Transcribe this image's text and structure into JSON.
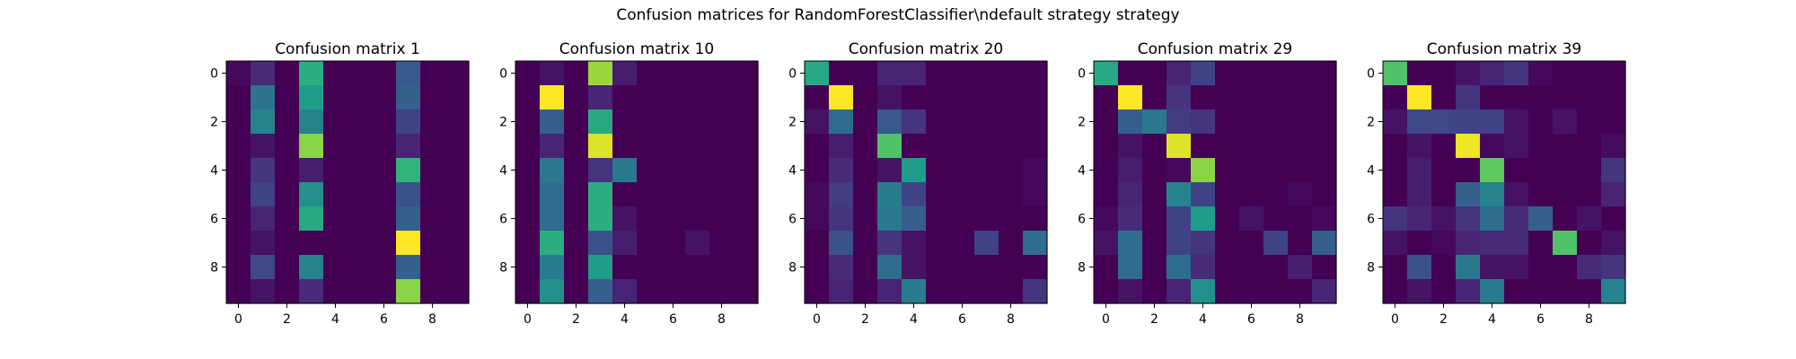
{
  "figure": {
    "suptitle": "Confusion matrices for RandomForestClassifier\\ndefault strategy strategy"
  },
  "colormap": {
    "name": "viridis",
    "stops": [
      "#440154",
      "#482878",
      "#3e4989",
      "#31688e",
      "#26828e",
      "#1f9e89",
      "#35b779",
      "#6ece58",
      "#b5de2b",
      "#fde725"
    ]
  },
  "chart_data": [
    {
      "type": "heatmap",
      "title": "Confusion matrix 1",
      "xticks": [
        "0",
        "2",
        "4",
        "6",
        "8"
      ],
      "yticks": [
        "0",
        "2",
        "4",
        "6",
        "8"
      ],
      "vmin": 0,
      "vmax": 1,
      "values": [
        [
          0.02,
          0.12,
          0.0,
          0.62,
          0.0,
          0.0,
          0.0,
          0.28,
          0.0,
          0.0
        ],
        [
          0.0,
          0.38,
          0.0,
          0.55,
          0.0,
          0.0,
          0.0,
          0.3,
          0.0,
          0.0
        ],
        [
          0.0,
          0.45,
          0.0,
          0.45,
          0.0,
          0.0,
          0.0,
          0.2,
          0.0,
          0.0
        ],
        [
          0.0,
          0.05,
          0.0,
          0.82,
          0.0,
          0.0,
          0.0,
          0.1,
          0.0,
          0.0
        ],
        [
          0.0,
          0.15,
          0.0,
          0.08,
          0.0,
          0.0,
          0.0,
          0.65,
          0.0,
          0.0
        ],
        [
          0.0,
          0.2,
          0.0,
          0.5,
          0.0,
          0.0,
          0.0,
          0.25,
          0.0,
          0.0
        ],
        [
          0.0,
          0.1,
          0.0,
          0.6,
          0.0,
          0.0,
          0.0,
          0.3,
          0.0,
          0.0
        ],
        [
          0.0,
          0.05,
          0.0,
          0.0,
          0.0,
          0.0,
          0.0,
          1.0,
          0.0,
          0.0
        ],
        [
          0.0,
          0.22,
          0.0,
          0.45,
          0.0,
          0.0,
          0.0,
          0.3,
          0.0,
          0.0
        ],
        [
          0.0,
          0.05,
          0.0,
          0.12,
          0.0,
          0.0,
          0.0,
          0.82,
          0.0,
          0.0
        ]
      ]
    },
    {
      "type": "heatmap",
      "title": "Confusion matrix 10",
      "xticks": [
        "0",
        "2",
        "4",
        "6",
        "8"
      ],
      "yticks": [
        "0",
        "2",
        "4",
        "6",
        "8"
      ],
      "vmin": 0,
      "vmax": 1,
      "values": [
        [
          0.0,
          0.05,
          0.0,
          0.85,
          0.08,
          0.0,
          0.0,
          0.0,
          0.0,
          0.0
        ],
        [
          0.0,
          1.0,
          0.0,
          0.1,
          0.0,
          0.0,
          0.0,
          0.0,
          0.0,
          0.0
        ],
        [
          0.0,
          0.3,
          0.0,
          0.6,
          0.0,
          0.0,
          0.0,
          0.0,
          0.0,
          0.0
        ],
        [
          0.0,
          0.1,
          0.0,
          0.95,
          0.0,
          0.0,
          0.0,
          0.0,
          0.0,
          0.0
        ],
        [
          0.0,
          0.4,
          0.0,
          0.15,
          0.4,
          0.0,
          0.0,
          0.0,
          0.0,
          0.0
        ],
        [
          0.0,
          0.35,
          0.0,
          0.62,
          0.0,
          0.0,
          0.0,
          0.0,
          0.0,
          0.0
        ],
        [
          0.0,
          0.35,
          0.0,
          0.62,
          0.05,
          0.0,
          0.0,
          0.0,
          0.0,
          0.0
        ],
        [
          0.0,
          0.62,
          0.0,
          0.25,
          0.08,
          0.0,
          0.0,
          0.05,
          0.0,
          0.0
        ],
        [
          0.0,
          0.42,
          0.0,
          0.55,
          0.0,
          0.0,
          0.0,
          0.0,
          0.0,
          0.0
        ],
        [
          0.0,
          0.5,
          0.0,
          0.3,
          0.1,
          0.0,
          0.0,
          0.0,
          0.0,
          0.0
        ]
      ]
    },
    {
      "type": "heatmap",
      "title": "Confusion matrix 20",
      "xticks": [
        "0",
        "2",
        "4",
        "6",
        "8"
      ],
      "yticks": [
        "0",
        "2",
        "4",
        "6",
        "8"
      ],
      "vmin": 0,
      "vmax": 1,
      "values": [
        [
          0.6,
          0.0,
          0.0,
          0.1,
          0.1,
          0.0,
          0.0,
          0.0,
          0.0,
          0.0
        ],
        [
          0.0,
          1.0,
          0.0,
          0.05,
          0.0,
          0.0,
          0.0,
          0.0,
          0.0,
          0.0
        ],
        [
          0.05,
          0.35,
          0.0,
          0.28,
          0.15,
          0.0,
          0.0,
          0.0,
          0.0,
          0.0
        ],
        [
          0.0,
          0.08,
          0.0,
          0.72,
          0.0,
          0.0,
          0.0,
          0.0,
          0.0,
          0.0
        ],
        [
          0.0,
          0.12,
          0.0,
          0.05,
          0.55,
          0.0,
          0.0,
          0.0,
          0.0,
          0.02
        ],
        [
          0.02,
          0.18,
          0.0,
          0.42,
          0.2,
          0.0,
          0.0,
          0.0,
          0.0,
          0.02
        ],
        [
          0.02,
          0.15,
          0.0,
          0.4,
          0.3,
          0.0,
          0.0,
          0.0,
          0.0,
          0.0
        ],
        [
          0.0,
          0.25,
          0.0,
          0.15,
          0.05,
          0.0,
          0.0,
          0.2,
          0.0,
          0.35
        ],
        [
          0.0,
          0.12,
          0.0,
          0.35,
          0.05,
          0.0,
          0.0,
          0.0,
          0.0,
          0.0
        ],
        [
          0.0,
          0.1,
          0.0,
          0.1,
          0.42,
          0.0,
          0.0,
          0.0,
          0.0,
          0.15
        ]
      ]
    },
    {
      "type": "heatmap",
      "title": "Confusion matrix 29",
      "xticks": [
        "0",
        "2",
        "4",
        "6",
        "8"
      ],
      "yticks": [
        "0",
        "2",
        "4",
        "6",
        "8"
      ],
      "vmin": 0,
      "vmax": 1,
      "values": [
        [
          0.6,
          0.0,
          0.0,
          0.1,
          0.2,
          0.0,
          0.0,
          0.0,
          0.0,
          0.0
        ],
        [
          0.0,
          1.0,
          0.0,
          0.15,
          0.0,
          0.0,
          0.0,
          0.0,
          0.0,
          0.0
        ],
        [
          0.0,
          0.3,
          0.4,
          0.18,
          0.15,
          0.0,
          0.0,
          0.0,
          0.0,
          0.0
        ],
        [
          0.0,
          0.05,
          0.0,
          0.95,
          0.0,
          0.0,
          0.0,
          0.0,
          0.0,
          0.0
        ],
        [
          0.0,
          0.08,
          0.0,
          0.02,
          0.82,
          0.0,
          0.0,
          0.0,
          0.0,
          0.0
        ],
        [
          0.0,
          0.1,
          0.0,
          0.45,
          0.2,
          0.0,
          0.0,
          0.0,
          0.02,
          0.0
        ],
        [
          0.02,
          0.12,
          0.0,
          0.2,
          0.55,
          0.0,
          0.05,
          0.0,
          0.0,
          0.02
        ],
        [
          0.05,
          0.35,
          0.0,
          0.2,
          0.15,
          0.0,
          0.0,
          0.2,
          0.0,
          0.3
        ],
        [
          0.0,
          0.35,
          0.0,
          0.35,
          0.12,
          0.0,
          0.0,
          0.0,
          0.08,
          0.0
        ],
        [
          0.0,
          0.05,
          0.0,
          0.1,
          0.5,
          0.0,
          0.0,
          0.0,
          0.0,
          0.1
        ]
      ]
    },
    {
      "type": "heatmap",
      "title": "Confusion matrix 39",
      "xticks": [
        "0",
        "2",
        "4",
        "6",
        "8"
      ],
      "yticks": [
        "0",
        "2",
        "4",
        "6",
        "8"
      ],
      "vmin": 0,
      "vmax": 1,
      "values": [
        [
          0.72,
          0.0,
          0.0,
          0.05,
          0.1,
          0.15,
          0.02,
          0.0,
          0.0,
          0.0
        ],
        [
          0.0,
          1.0,
          0.0,
          0.15,
          0.0,
          0.0,
          0.0,
          0.0,
          0.0,
          0.0
        ],
        [
          0.05,
          0.22,
          0.22,
          0.2,
          0.2,
          0.05,
          0.0,
          0.05,
          0.0,
          0.0
        ],
        [
          0.0,
          0.05,
          0.0,
          0.98,
          0.02,
          0.05,
          0.0,
          0.0,
          0.0,
          0.03
        ],
        [
          0.0,
          0.08,
          0.0,
          0.0,
          0.75,
          0.0,
          0.0,
          0.0,
          0.0,
          0.15
        ],
        [
          0.0,
          0.08,
          0.0,
          0.3,
          0.45,
          0.05,
          0.0,
          0.0,
          0.0,
          0.1
        ],
        [
          0.15,
          0.1,
          0.05,
          0.15,
          0.35,
          0.12,
          0.3,
          0.0,
          0.05,
          0.0
        ],
        [
          0.05,
          0.0,
          0.02,
          0.1,
          0.12,
          0.12,
          0.0,
          0.72,
          0.0,
          0.05
        ],
        [
          0.0,
          0.25,
          0.0,
          0.4,
          0.05,
          0.05,
          0.0,
          0.0,
          0.12,
          0.15
        ],
        [
          0.0,
          0.05,
          0.0,
          0.1,
          0.42,
          0.0,
          0.0,
          0.0,
          0.0,
          0.45
        ]
      ]
    }
  ]
}
